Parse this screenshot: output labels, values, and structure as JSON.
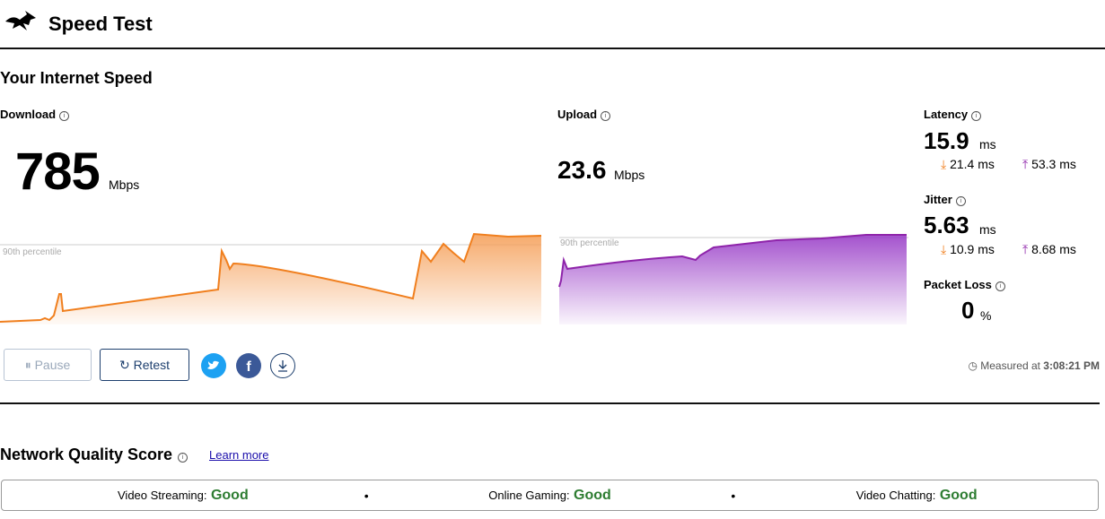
{
  "header": {
    "title": "Speed Test"
  },
  "section_title": "Your Internet Speed",
  "download": {
    "label": "Download",
    "value": "785",
    "unit": "Mbps",
    "percentile_label": "90th percentile"
  },
  "upload": {
    "label": "Upload",
    "value": "23.6",
    "unit": "Mbps",
    "percentile_label": "90th percentile"
  },
  "latency": {
    "label": "Latency",
    "value": "15.9",
    "unit": "ms",
    "down": "21.4 ms",
    "up": "53.3 ms"
  },
  "jitter": {
    "label": "Jitter",
    "value": "5.63",
    "unit": "ms",
    "down": "10.9 ms",
    "up": "8.68 ms"
  },
  "packet_loss": {
    "label": "Packet Loss",
    "value": "0",
    "unit": "%"
  },
  "buttons": {
    "pause": "Pause",
    "retest": "Retest"
  },
  "measured": {
    "label": "Measured at",
    "time": "3:08:21 PM"
  },
  "quality": {
    "title": "Network Quality Score",
    "link": "Learn more",
    "items": [
      {
        "name": "Video Streaming:",
        "score": "Good"
      },
      {
        "name": "Online Gaming:",
        "score": "Good"
      },
      {
        "name": "Video Chatting:",
        "score": "Good"
      }
    ]
  }
}
